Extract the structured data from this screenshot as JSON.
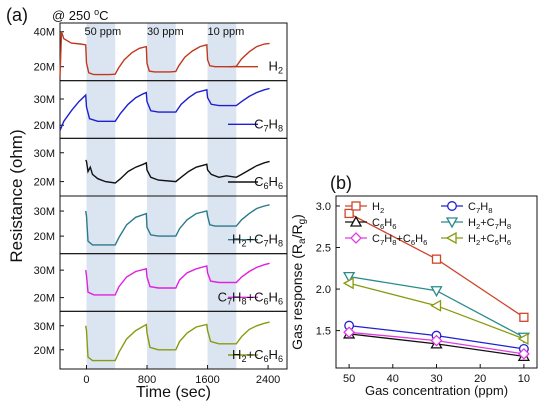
{
  "figure": {
    "panel_a_label": "(a)",
    "panel_b_label": "(b)",
    "condition_text": "@ 250 ",
    "condition_sup": "o",
    "condition_unit": "C"
  },
  "chart_data": [
    {
      "type": "line",
      "panel": "a",
      "xlabel": "Time (sec)",
      "ylabel": "Resistance (ohm)",
      "xlim": [
        -350,
        2650
      ],
      "xticks": [
        0,
        800,
        1600,
        2400
      ],
      "pulses": [
        {
          "label": "50 ppm",
          "start": 0,
          "end": 380
        },
        {
          "label": "30 ppm",
          "start": 800,
          "end": 1180
        },
        {
          "label": "10 ppm",
          "start": 1600,
          "end": 1980
        }
      ],
      "series": [
        {
          "name": "H2",
          "name_base": "H",
          "name_sub": "2",
          "name_rest": "",
          "name_sub2": "",
          "color": "#c0391e",
          "ylim": [
            12000000,
            45000000
          ],
          "yticks": [
            {
              "v": 20000000,
              "label": "20M"
            },
            {
              "v": 40000000,
              "label": "40M"
            }
          ],
          "points": [
            [
              -350,
              14200000
            ],
            [
              -330,
              40000000
            ],
            [
              -300,
              36000000
            ],
            [
              -200,
              33500000
            ],
            [
              -80,
              33000000
            ],
            [
              -10,
              32500000
            ],
            [
              0,
              22000000
            ],
            [
              30,
              16500000
            ],
            [
              100,
              15500000
            ],
            [
              300,
              15500000
            ],
            [
              380,
              15700000
            ],
            [
              420,
              19000000
            ],
            [
              500,
              24000000
            ],
            [
              600,
              28000000
            ],
            [
              700,
              30500000
            ],
            [
              790,
              31500000
            ],
            [
              800,
              22000000
            ],
            [
              830,
              17500000
            ],
            [
              900,
              17000000
            ],
            [
              1100,
              17000000
            ],
            [
              1180,
              17300000
            ],
            [
              1220,
              20500000
            ],
            [
              1300,
              25500000
            ],
            [
              1400,
              29000000
            ],
            [
              1500,
              31500000
            ],
            [
              1590,
              32500000
            ],
            [
              1600,
              24000000
            ],
            [
              1630,
              20500000
            ],
            [
              1700,
              20000000
            ],
            [
              1900,
              20000000
            ],
            [
              1980,
              20200000
            ],
            [
              2050,
              24500000
            ],
            [
              2150,
              28500000
            ],
            [
              2250,
              31500000
            ],
            [
              2350,
              33000000
            ],
            [
              2420,
              33300000
            ]
          ]
        },
        {
          "name": "C7H8",
          "name_base": "C",
          "name_sub": "7",
          "name_rest": "H",
          "name_sub2": "8",
          "color": "#1d1fd0",
          "ylim": [
            15000000,
            37000000
          ],
          "yticks": [
            {
              "v": 20000000,
              "label": "20M"
            },
            {
              "v": 30000000,
              "label": "30M"
            }
          ],
          "points": [
            [
              -350,
              18000000
            ],
            [
              -300,
              21500000
            ],
            [
              -200,
              25500000
            ],
            [
              -100,
              29000000
            ],
            [
              -10,
              31500000
            ],
            [
              0,
              27000000
            ],
            [
              40,
              22500000
            ],
            [
              150,
              21500000
            ],
            [
              380,
              21500000
            ],
            [
              450,
              24500000
            ],
            [
              550,
              28000000
            ],
            [
              650,
              30500000
            ],
            [
              750,
              32000000
            ],
            [
              790,
              32500000
            ],
            [
              800,
              29000000
            ],
            [
              850,
              25500000
            ],
            [
              950,
              25000000
            ],
            [
              1180,
              25000000
            ],
            [
              1250,
              28000000
            ],
            [
              1350,
              30500000
            ],
            [
              1450,
              32500000
            ],
            [
              1590,
              33500000
            ],
            [
              1600,
              30500000
            ],
            [
              1650,
              28000000
            ],
            [
              1750,
              27500000
            ],
            [
              1980,
              27500000
            ],
            [
              2050,
              29000000
            ],
            [
              2150,
              31000000
            ],
            [
              2250,
              32500000
            ],
            [
              2350,
              33500000
            ],
            [
              2420,
              34000000
            ]
          ]
        },
        {
          "name": "C6H6",
          "name_base": "C",
          "name_sub": "6",
          "name_rest": "H",
          "name_sub2": "6",
          "color": "#111111",
          "ylim": [
            15000000,
            35000000
          ],
          "yticks": [
            {
              "v": 20000000,
              "label": "20M"
            },
            {
              "v": 30000000,
              "label": "30M"
            }
          ],
          "points": [
            [
              -10,
              27500000
            ],
            [
              0,
              27000000
            ],
            [
              20,
              23500000
            ],
            [
              50,
              25000000
            ],
            [
              80,
              22500000
            ],
            [
              150,
              21000000
            ],
            [
              250,
              20000000
            ],
            [
              380,
              19500000
            ],
            [
              450,
              21000000
            ],
            [
              550,
              23500000
            ],
            [
              650,
              25000000
            ],
            [
              750,
              26000000
            ],
            [
              790,
              26500000
            ],
            [
              800,
              24000000
            ],
            [
              850,
              21500000
            ],
            [
              950,
              20500000
            ],
            [
              1180,
              20000000
            ],
            [
              1250,
              21500000
            ],
            [
              1350,
              23500000
            ],
            [
              1450,
              25000000
            ],
            [
              1590,
              26000000
            ],
            [
              1600,
              24000000
            ],
            [
              1650,
              22500000
            ],
            [
              1750,
              21500000
            ],
            [
              1850,
              22000000
            ],
            [
              1980,
              21500000
            ],
            [
              2050,
              22500000
            ],
            [
              2150,
              24000000
            ],
            [
              2250,
              25500000
            ],
            [
              2350,
              26500000
            ],
            [
              2420,
              27000000
            ]
          ]
        },
        {
          "name": "H2+C7H8",
          "name_base": "H",
          "name_sub": "2",
          "name_rest": "+C",
          "name_sub2": "7",
          "name_rest2": "H",
          "name_sub3": "8",
          "color": "#2a7a8a",
          "ylim": [
            13000000,
            36000000
          ],
          "yticks": [
            {
              "v": 20000000,
              "label": "20M"
            },
            {
              "v": 30000000,
              "label": "30M"
            }
          ],
          "points": [
            [
              -10,
              30000000
            ],
            [
              0,
              28000000
            ],
            [
              20,
              18000000
            ],
            [
              80,
              16500000
            ],
            [
              380,
              16500000
            ],
            [
              430,
              19500000
            ],
            [
              530,
              24500000
            ],
            [
              650,
              27500000
            ],
            [
              790,
              29000000
            ],
            [
              800,
              23500000
            ],
            [
              850,
              20500000
            ],
            [
              950,
              20000000
            ],
            [
              1180,
              20000000
            ],
            [
              1230,
              23000000
            ],
            [
              1330,
              26500000
            ],
            [
              1450,
              29000000
            ],
            [
              1590,
              30000000
            ],
            [
              1600,
              28000000
            ],
            [
              1630,
              24500000
            ],
            [
              1700,
              24000000
            ],
            [
              1980,
              24000000
            ],
            [
              2050,
              26500000
            ],
            [
              2150,
              29000000
            ],
            [
              2250,
              31000000
            ],
            [
              2350,
              32000000
            ],
            [
              2420,
              32500000
            ]
          ]
        },
        {
          "name": "C7H8+C6H6",
          "name_base": "C",
          "name_sub": "7",
          "name_rest": "H",
          "name_sub2": "8",
          "name_rest2": "+C",
          "name_sub3": "6",
          "name_rest3": "H",
          "name_sub4": "6",
          "color": "#e020e0",
          "ylim": [
            15000000,
            36000000
          ],
          "yticks": [
            {
              "v": 20000000,
              "label": "20M"
            },
            {
              "v": 30000000,
              "label": "30M"
            }
          ],
          "points": [
            [
              -10,
              30000000
            ],
            [
              0,
              28000000
            ],
            [
              20,
              22000000
            ],
            [
              100,
              21000000
            ],
            [
              380,
              21000000
            ],
            [
              430,
              24000000
            ],
            [
              530,
              27500000
            ],
            [
              650,
              29500000
            ],
            [
              790,
              30500000
            ],
            [
              800,
              27500000
            ],
            [
              840,
              24000000
            ],
            [
              950,
              23500000
            ],
            [
              1180,
              23500000
            ],
            [
              1230,
              26500000
            ],
            [
              1330,
              29000000
            ],
            [
              1450,
              30500000
            ],
            [
              1590,
              31500000
            ],
            [
              1600,
              29000000
            ],
            [
              1640,
              26000000
            ],
            [
              1750,
              25500000
            ],
            [
              1980,
              25500000
            ],
            [
              2050,
              27500000
            ],
            [
              2150,
              29500000
            ],
            [
              2250,
              31000000
            ],
            [
              2350,
              32000000
            ],
            [
              2420,
              32500000
            ]
          ]
        },
        {
          "name": "H2+C6H6",
          "name_base": "H",
          "name_sub": "2",
          "name_rest": "+C",
          "name_sub2": "6",
          "name_rest2": "H",
          "name_sub3": "6",
          "color": "#8a9a10",
          "ylim": [
            12000000,
            36000000
          ],
          "yticks": [
            {
              "v": 20000000,
              "label": "20M"
            },
            {
              "v": 30000000,
              "label": "30M"
            }
          ],
          "points": [
            [
              -10,
              30000000
            ],
            [
              0,
              28000000
            ],
            [
              20,
              17000000
            ],
            [
              80,
              15500000
            ],
            [
              380,
              15500000
            ],
            [
              430,
              19000000
            ],
            [
              530,
              24500000
            ],
            [
              650,
              28000000
            ],
            [
              790,
              30500000
            ],
            [
              800,
              27000000
            ],
            [
              840,
              21000000
            ],
            [
              950,
              20000000
            ],
            [
              1180,
              20000000
            ],
            [
              1230,
              23500000
            ],
            [
              1330,
              27000000
            ],
            [
              1450,
              29500000
            ],
            [
              1590,
              30500000
            ],
            [
              1600,
              28000000
            ],
            [
              1640,
              23500000
            ],
            [
              1750,
              22500000
            ],
            [
              1980,
              22500000
            ],
            [
              2050,
              25500000
            ],
            [
              2150,
              28500000
            ],
            [
              2250,
              30000000
            ],
            [
              2350,
              31000000
            ],
            [
              2420,
              31500000
            ]
          ]
        }
      ]
    },
    {
      "type": "line",
      "panel": "b",
      "xlabel": "Gas concentration (ppm)",
      "ylabel_base": "Gas response (R",
      "ylabel_sub_a": "a",
      "ylabel_mid": "/R",
      "ylabel_sub_g": "g",
      "ylabel_end": ")",
      "x_reversed": true,
      "xlim": [
        53,
        7
      ],
      "ylim": [
        1.05,
        3.12
      ],
      "xticks": [
        50,
        40,
        30,
        20,
        10
      ],
      "yticks": [
        1.5,
        2.0,
        2.5,
        3.0
      ],
      "ytick_labels": [
        "1.5",
        "2.0",
        "2.5",
        "3.0"
      ],
      "x": [
        50,
        30,
        10
      ],
      "legend_position": "top",
      "series": [
        {
          "name": "H2",
          "label_base": "H",
          "label_sub": "2",
          "marker": "square",
          "color": "#d0442a",
          "values": [
            2.91,
            2.36,
            1.66
          ]
        },
        {
          "name": "C7H8",
          "label_base": "C",
          "label_sub": "7",
          "label_rest": "H",
          "label_sub2": "8",
          "marker": "circle",
          "color": "#2020d0",
          "values": [
            1.56,
            1.44,
            1.28
          ]
        },
        {
          "name": "C6H6",
          "label_base": "C",
          "label_sub": "6",
          "label_rest": "H",
          "label_sub2": "6",
          "marker": "triangle-up",
          "color": "#111111",
          "values": [
            1.46,
            1.34,
            1.19
          ]
        },
        {
          "name": "H2+C7H8",
          "label_base": "H",
          "label_sub": "2",
          "label_rest": "+C",
          "label_sub2": "7",
          "label_rest2": "H",
          "label_sub3": "8",
          "marker": "triangle-down",
          "color": "#2b8a8c",
          "values": [
            2.15,
            1.98,
            1.42
          ]
        },
        {
          "name": "C7H8+C6H6",
          "label_base": "C",
          "label_sub": "7",
          "label_rest": "H",
          "label_sub2": "8",
          "label_rest2": "+C",
          "label_sub3": "6",
          "label_rest3": "H",
          "label_sub4": "6",
          "marker": "diamond",
          "color": "#e23be2",
          "values": [
            1.48,
            1.38,
            1.22
          ]
        },
        {
          "name": "H2+C6H6",
          "label_base": "H",
          "label_sub": "2",
          "label_rest": "+C",
          "label_sub2": "6",
          "label_rest2": "H",
          "label_sub3": "6",
          "marker": "triangle-left",
          "color": "#8a9a10",
          "values": [
            2.07,
            1.8,
            1.4
          ]
        }
      ]
    }
  ]
}
